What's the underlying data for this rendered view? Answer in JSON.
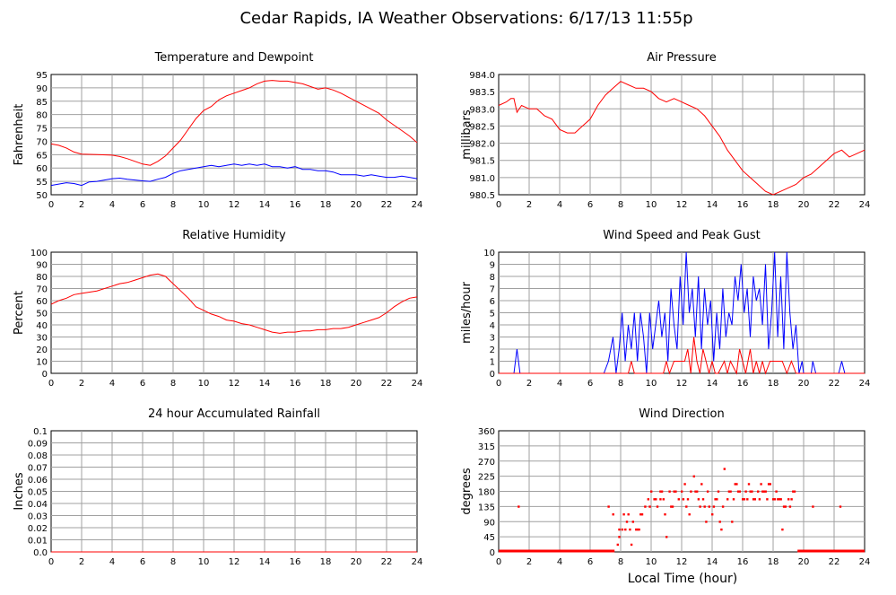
{
  "title": "Cedar Rapids, IA Weather Observations: 6/17/13 11:55p",
  "xlabel_bottom": "Local Time (hour)",
  "colors": {
    "primary": "#ff0000",
    "secondary": "#0000ff",
    "grid": "#a0a0a0"
  },
  "chart_data": [
    {
      "id": "temp",
      "type": "line",
      "title": "Temperature and Dewpoint",
      "ylabel": "Fahrenheit",
      "x_ticks": [
        0,
        2,
        4,
        6,
        8,
        10,
        12,
        14,
        16,
        18,
        20,
        22,
        24
      ],
      "xlim": [
        0,
        24
      ],
      "ylim": [
        50,
        95
      ],
      "y_ticks": [
        "50",
        "55",
        "60",
        "65",
        "70",
        "75",
        "80",
        "85",
        "90",
        "95"
      ],
      "series": [
        {
          "color": "#ff0000",
          "x": [
            0,
            0.5,
            1,
            1.5,
            2,
            3,
            4,
            4.5,
            5,
            5.5,
            6,
            6.5,
            7,
            7.5,
            8,
            8.5,
            9,
            9.5,
            10,
            10.5,
            11,
            11.5,
            12,
            12.5,
            13,
            13.5,
            14,
            14.5,
            15,
            15.5,
            16,
            16.5,
            17,
            17.5,
            18,
            18.5,
            19,
            19.5,
            20,
            20.5,
            21,
            21.5,
            22,
            22.5,
            23,
            23.5,
            24
          ],
          "y": [
            69,
            68.5,
            67.5,
            66,
            65.2,
            65,
            64.8,
            64.3,
            63.5,
            62.5,
            61.5,
            61,
            62.5,
            64.5,
            67.5,
            70.5,
            74.5,
            78.5,
            81.5,
            83,
            85.5,
            87,
            88,
            89,
            90,
            91.5,
            92.5,
            92.8,
            92.5,
            92.5,
            92,
            91.5,
            90.5,
            89.5,
            90,
            89.2,
            88,
            86.5,
            85,
            83.5,
            82,
            80.5,
            78,
            76,
            74,
            72,
            69.5
          ]
        },
        {
          "color": "#0000ff",
          "x": [
            0,
            0.5,
            1,
            1.5,
            2,
            2.5,
            3,
            3.5,
            4,
            4.5,
            5,
            5.5,
            6,
            6.5,
            7,
            7.5,
            8,
            8.5,
            9,
            9.5,
            10,
            10.5,
            11,
            11.5,
            12,
            12.5,
            13,
            13.5,
            14,
            14.5,
            15,
            15.5,
            16,
            16.5,
            17,
            17.5,
            18,
            18.5,
            19,
            19.5,
            20,
            20.5,
            21,
            21.5,
            22,
            22.5,
            23,
            23.5,
            24
          ],
          "y": [
            53.5,
            54,
            54.5,
            54.2,
            53.5,
            54.8,
            55,
            55.5,
            56,
            56.2,
            55.8,
            55.5,
            55.2,
            55,
            55.8,
            56.5,
            58,
            59,
            59.5,
            60,
            60.5,
            61,
            60.5,
            61,
            61.5,
            61,
            61.5,
            61,
            61.5,
            60.5,
            60.5,
            60,
            60.5,
            59.5,
            59.5,
            59,
            59,
            58.5,
            57.5,
            57.5,
            57.5,
            57,
            57.5,
            57,
            56.5,
            56.5,
            57,
            56.5,
            56
          ]
        }
      ]
    },
    {
      "id": "press",
      "type": "line",
      "title": "Air Pressure",
      "ylabel": "millibars",
      "x_ticks": [
        0,
        2,
        4,
        6,
        8,
        10,
        12,
        14,
        16,
        18,
        20,
        22,
        24
      ],
      "xlim": [
        0,
        24
      ],
      "ylim": [
        980.5,
        984
      ],
      "y_ticks": [
        "980.5",
        "981.0",
        "981.5",
        "982.0",
        "982.5",
        "983.0",
        "983.5",
        "984.0"
      ],
      "series": [
        {
          "color": "#ff0000",
          "x": [
            0,
            0.5,
            0.8,
            1,
            1.2,
            1.5,
            2,
            2.5,
            3,
            3.5,
            4,
            4.5,
            5,
            5.5,
            6,
            6.5,
            7,
            7.5,
            8,
            8.5,
            9,
            9.5,
            10,
            10.5,
            11,
            11.5,
            12,
            12.5,
            13,
            13.5,
            14,
            14.5,
            15,
            15.5,
            16,
            16.5,
            17,
            17.5,
            18,
            18.5,
            19,
            19.5,
            20,
            20.5,
            21,
            21.5,
            22,
            22.5,
            23,
            23.5,
            24
          ],
          "y": [
            983.1,
            983.2,
            983.3,
            983.3,
            982.9,
            983.1,
            983,
            983,
            982.8,
            982.7,
            982.4,
            982.3,
            982.3,
            982.5,
            982.7,
            983.1,
            983.4,
            983.6,
            983.8,
            983.7,
            983.6,
            983.6,
            983.5,
            983.3,
            983.2,
            983.3,
            983.2,
            983.1,
            983,
            982.8,
            982.5,
            982.2,
            981.8,
            981.5,
            981.2,
            981,
            980.8,
            980.6,
            980.5,
            980.6,
            980.7,
            980.8,
            981,
            981.1,
            981.3,
            981.5,
            981.7,
            981.8,
            981.6,
            981.7,
            981.8
          ]
        }
      ]
    },
    {
      "id": "rh",
      "type": "line",
      "title": "Relative Humidity",
      "ylabel": "Percent",
      "x_ticks": [
        0,
        2,
        4,
        6,
        8,
        10,
        12,
        14,
        16,
        18,
        20,
        22,
        24
      ],
      "xlim": [
        0,
        24
      ],
      "ylim": [
        0,
        100
      ],
      "y_ticks": [
        "0",
        "10",
        "20",
        "30",
        "40",
        "50",
        "60",
        "70",
        "80",
        "90",
        "100"
      ],
      "series": [
        {
          "color": "#ff0000",
          "x": [
            0,
            0.5,
            1,
            1.5,
            2,
            3,
            4,
            4.5,
            5,
            5.5,
            6,
            6.5,
            7,
            7.5,
            8,
            8.5,
            9,
            9.5,
            10,
            10.5,
            11,
            11.5,
            12,
            12.5,
            13,
            13.5,
            14,
            14.5,
            15,
            15.5,
            16,
            16.5,
            17,
            17.5,
            18,
            18.5,
            19,
            19.5,
            20,
            20.5,
            21,
            21.5,
            22,
            22.5,
            23,
            23.5,
            24
          ],
          "y": [
            57,
            60,
            62,
            65,
            66,
            68,
            72,
            74,
            75,
            77,
            79,
            81,
            82,
            80,
            74,
            68,
            62,
            55,
            52,
            49,
            47,
            44,
            43,
            41,
            40,
            38,
            36,
            34,
            33,
            34,
            34,
            35,
            35,
            36,
            36,
            37,
            37,
            38,
            40,
            42,
            44,
            46,
            50,
            55,
            59,
            62,
            63
          ]
        }
      ]
    },
    {
      "id": "wind",
      "type": "line",
      "title": "Wind Speed and Peak Gust",
      "ylabel": "miles/hour",
      "x_ticks": [
        0,
        2,
        4,
        6,
        8,
        10,
        12,
        14,
        16,
        18,
        20,
        22,
        24
      ],
      "xlim": [
        0,
        24
      ],
      "ylim": [
        0,
        10
      ],
      "y_ticks": [
        "0",
        "1",
        "2",
        "3",
        "4",
        "5",
        "6",
        "7",
        "8",
        "9",
        "10"
      ],
      "series": [
        {
          "color": "#0000ff",
          "x": [
            0,
            1,
            1.2,
            1.4,
            6.9,
            7.2,
            7.5,
            7.7,
            7.9,
            8.1,
            8.3,
            8.5,
            8.7,
            8.9,
            9.1,
            9.3,
            9.5,
            9.7,
            9.9,
            10.1,
            10.3,
            10.5,
            10.7,
            10.9,
            11.1,
            11.3,
            11.5,
            11.7,
            11.9,
            12.1,
            12.3,
            12.5,
            12.7,
            12.9,
            13.1,
            13.3,
            13.5,
            13.7,
            13.9,
            14.1,
            14.3,
            14.5,
            14.7,
            14.9,
            15.1,
            15.3,
            15.5,
            15.7,
            15.9,
            16.1,
            16.3,
            16.5,
            16.7,
            16.9,
            17.1,
            17.3,
            17.5,
            17.7,
            17.9,
            18.1,
            18.3,
            18.5,
            18.7,
            18.9,
            19.1,
            19.3,
            19.5,
            19.7,
            19.9,
            20,
            20.5,
            20.6,
            20.8,
            22.3,
            22.5,
            22.7,
            24
          ],
          "y": [
            0,
            0,
            2,
            0,
            0,
            1,
            3,
            0,
            2,
            5,
            1,
            4,
            2,
            5,
            1,
            5,
            3,
            0,
            5,
            2,
            4,
            6,
            3,
            5,
            1,
            7,
            4,
            2,
            8,
            4,
            10,
            5,
            7,
            3,
            8,
            2,
            7,
            4,
            6,
            1,
            5,
            2,
            7,
            3,
            5,
            4,
            8,
            6,
            9,
            5,
            7,
            3,
            8,
            6,
            7,
            4,
            9,
            2,
            5,
            10,
            3,
            8,
            2,
            10,
            5,
            2,
            4,
            0,
            1,
            0,
            0,
            1,
            0,
            0,
            1,
            0,
            0
          ]
        },
        {
          "color": "#ff0000",
          "x": [
            0,
            8.5,
            8.7,
            8.9,
            9.5,
            10.8,
            11,
            11.2,
            11.5,
            12.2,
            12.4,
            12.6,
            12.8,
            13,
            13.2,
            13.4,
            13.8,
            14,
            14.2,
            14.4,
            14.8,
            15,
            15.2,
            15.6,
            15.8,
            16,
            16.2,
            16.5,
            16.7,
            16.9,
            17.1,
            17.3,
            17.5,
            17.8,
            18,
            18.3,
            18.6,
            18.9,
            19.2,
            19.5,
            20,
            24
          ],
          "y": [
            0,
            0,
            1,
            0,
            0,
            0,
            1,
            0,
            1,
            1,
            2,
            0,
            3,
            1,
            0,
            2,
            0,
            1,
            0,
            0,
            1,
            0,
            1,
            0,
            2,
            1,
            0,
            2,
            0,
            1,
            0,
            1,
            0,
            1,
            1,
            1,
            1,
            0,
            1,
            0,
            0,
            0
          ]
        }
      ]
    },
    {
      "id": "rain",
      "type": "line",
      "title": "24 hour Accumulated Rainfall",
      "ylabel": "Inches",
      "x_ticks": [
        0,
        2,
        4,
        6,
        8,
        10,
        12,
        14,
        16,
        18,
        20,
        22,
        24
      ],
      "xlim": [
        0,
        24
      ],
      "ylim": [
        0,
        0.1
      ],
      "y_ticks": [
        "0.0",
        "0.01",
        "0.02",
        "0.03",
        "0.04",
        "0.05",
        "0.06",
        "0.07",
        "0.08",
        "0.09",
        "0.1"
      ],
      "series": [
        {
          "color": "#ff0000",
          "x": [
            0,
            24
          ],
          "y": [
            0,
            0
          ]
        }
      ]
    },
    {
      "id": "dir",
      "type": "scatter",
      "title": "Wind Direction",
      "ylabel": "degrees",
      "xlabel": "Local Time (hour)",
      "x_ticks": [
        0,
        2,
        4,
        6,
        8,
        10,
        12,
        14,
        16,
        18,
        20,
        22,
        24
      ],
      "xlim": [
        0,
        24
      ],
      "ylim": [
        0,
        360
      ],
      "y_ticks": [
        "0",
        "45",
        "90",
        "135",
        "180",
        "225",
        "270",
        "315",
        "360"
      ],
      "series": [
        {
          "color": "#ff0000",
          "x": [
            1.3,
            7.2,
            7.5,
            7.8,
            7.9,
            8.1,
            8.2,
            8.3,
            8.5,
            8.6,
            8.8,
            9,
            9.2,
            9.4,
            9.6,
            9.8,
            10,
            10.2,
            10.4,
            10.6,
            10.8,
            11,
            11.2,
            11.4,
            11.6,
            11.8,
            12,
            12.2,
            12.4,
            12.6,
            12.8,
            13,
            13.2,
            13.4,
            13.6,
            13.8,
            14,
            14.2,
            14.4,
            14.6,
            14.8,
            15,
            15.2,
            15.4,
            15.6,
            15.8,
            16,
            16.2,
            16.4,
            16.6,
            16.8,
            17,
            17.2,
            17.4,
            17.6,
            17.8,
            18,
            18.2,
            18.4,
            18.6,
            18.8,
            19,
            19.2,
            19.4,
            20.6,
            22.4,
            9.9,
            10.3,
            10.9,
            11.5,
            12.1,
            12.5,
            13.1,
            13.5,
            14.1,
            14.5,
            15.1,
            15.5,
            16.1,
            16.5,
            17.1,
            17.5,
            18.1,
            18.5,
            19.1,
            7.9,
            8.4,
            9.1,
            10.6,
            11.3,
            12.9,
            13.7,
            14.3,
            15.3,
            16.3,
            17.3,
            18.3,
            19.3,
            8.7,
            9.3,
            10.7,
            12.3,
            13.3,
            14.7,
            15.7,
            16.7,
            17.7,
            18.7
          ],
          "y": [
            135,
            135,
            112,
            22,
            45,
            67,
            112,
            67,
            112,
            67,
            90,
            67,
            67,
            112,
            135,
            157,
            180,
            157,
            135,
            180,
            157,
            45,
            180,
            135,
            180,
            157,
            180,
            202,
            157,
            180,
            225,
            180,
            135,
            157,
            90,
            135,
            112,
            157,
            180,
            67,
            247,
            157,
            180,
            157,
            202,
            180,
            157,
            180,
            202,
            180,
            157,
            180,
            202,
            180,
            157,
            202,
            157,
            180,
            157,
            67,
            135,
            157,
            157,
            180,
            135,
            135,
            135,
            157,
            112,
            180,
            157,
            112,
            157,
            135,
            135,
            90,
            180,
            202,
            157,
            180,
            157,
            180,
            157,
            157,
            135,
            67,
            90,
            67,
            157,
            135,
            180,
            180,
            157,
            90,
            157,
            180,
            157,
            180,
            22,
            112,
            180,
            135,
            202,
            135,
            180,
            157,
            202,
            135
          ]
        },
        {
          "color": "#ff0000",
          "line_on_zero": true,
          "zero_ranges": [
            [
              0,
              7.6
            ],
            [
              19.6,
              24
            ]
          ]
        }
      ]
    }
  ]
}
